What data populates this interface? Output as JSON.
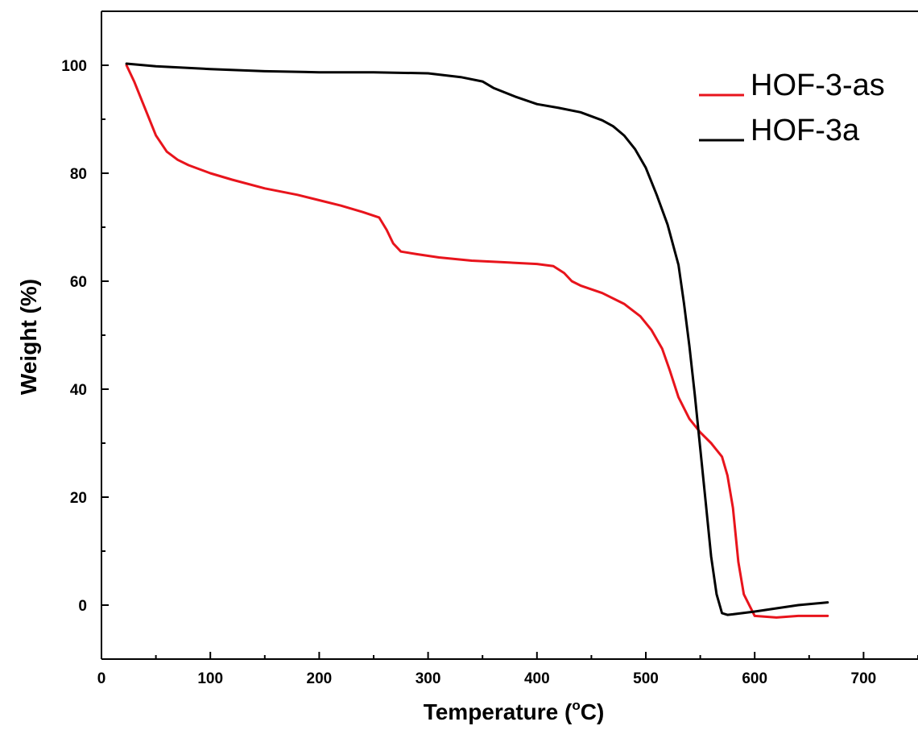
{
  "chart_data": {
    "type": "line",
    "xlabel_prefix": "Temperature (",
    "xlabel_unit_sup": "o",
    "xlabel_suffix": "C)",
    "ylabel": "Weight (%)",
    "xlim": [
      0,
      750
    ],
    "ylim": [
      -10,
      110
    ],
    "x_ticks": [
      0,
      100,
      200,
      300,
      400,
      500,
      600,
      700
    ],
    "y_ticks": [
      0,
      20,
      40,
      60,
      80,
      100
    ],
    "grid": false,
    "legend_position": "top-right",
    "series": [
      {
        "name": "HOF-3-as",
        "color": "#e8141c",
        "x": [
          23,
          30,
          40,
          50,
          60,
          70,
          80,
          100,
          120,
          150,
          180,
          200,
          220,
          240,
          255,
          262,
          268,
          275,
          290,
          310,
          340,
          370,
          400,
          415,
          425,
          432,
          440,
          460,
          480,
          495,
          505,
          515,
          522,
          530,
          540,
          550,
          560,
          570,
          575,
          580,
          585,
          590,
          600,
          620,
          640,
          667
        ],
        "y": [
          100,
          97,
          92,
          87,
          84,
          82.5,
          81.5,
          80,
          78.8,
          77.2,
          76,
          75,
          74,
          72.8,
          71.8,
          69.5,
          67,
          65.5,
          65,
          64.4,
          63.8,
          63.5,
          63.2,
          62.8,
          61.5,
          60,
          59.2,
          57.8,
          55.8,
          53.5,
          51,
          47.5,
          43.5,
          38.5,
          34.5,
          32,
          30,
          27.5,
          24,
          18,
          8,
          2,
          -2,
          -2.3,
          -2,
          -2
        ]
      },
      {
        "name": "HOF-3a",
        "color": "#000000",
        "x": [
          23,
          50,
          100,
          150,
          200,
          250,
          300,
          330,
          350,
          360,
          380,
          400,
          420,
          440,
          460,
          470,
          480,
          490,
          500,
          510,
          520,
          530,
          535,
          540,
          545,
          550,
          555,
          560,
          565,
          570,
          575,
          580,
          600,
          620,
          640,
          667
        ],
        "y": [
          100.3,
          99.8,
          99.3,
          98.9,
          98.7,
          98.7,
          98.5,
          97.8,
          97,
          95.8,
          94.2,
          92.8,
          92.1,
          91.3,
          89.8,
          88.7,
          87,
          84.5,
          81,
          76,
          70.5,
          63,
          56,
          48,
          39,
          29,
          19,
          9,
          2,
          -1.5,
          -1.8,
          -1.7,
          -1.2,
          -0.6,
          0,
          0.5
        ]
      }
    ]
  }
}
